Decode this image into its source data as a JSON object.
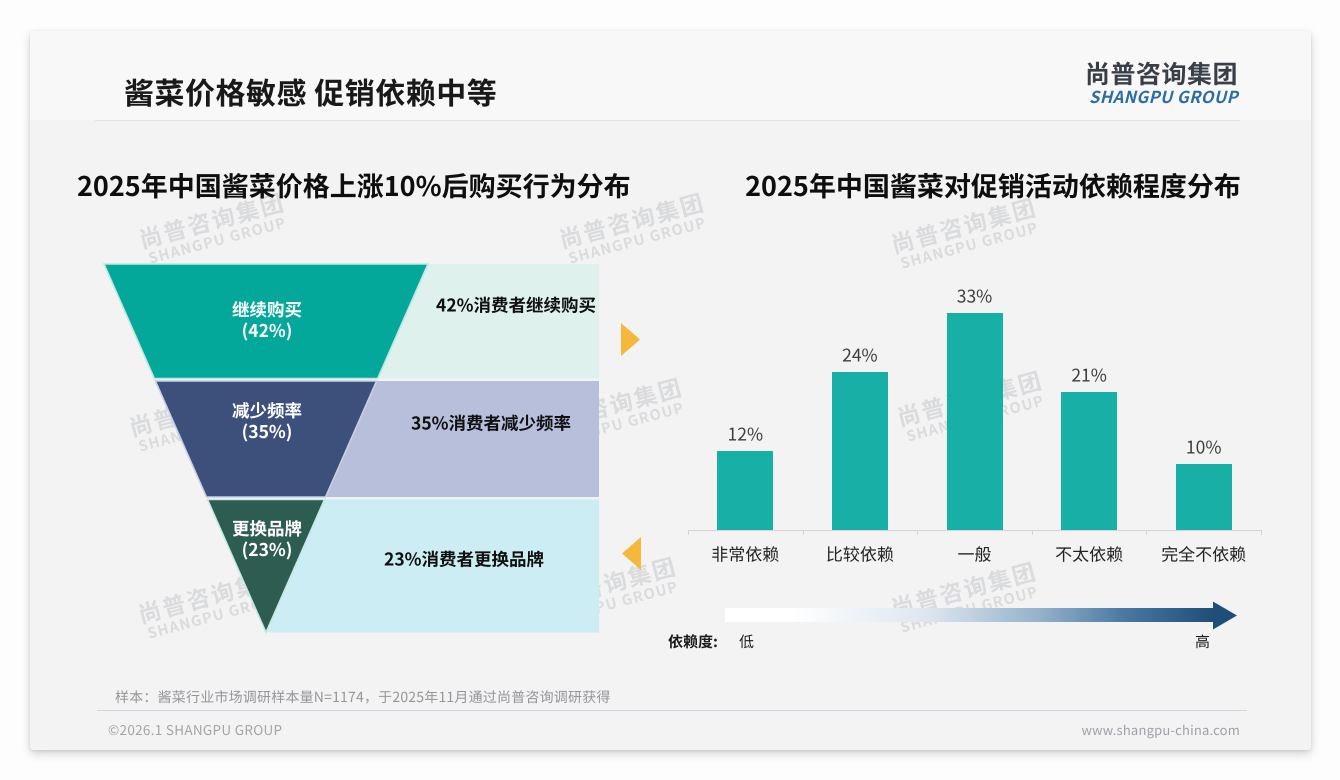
{
  "header": {
    "title": "酱菜价格敏感 促销依赖中等",
    "logo": {
      "zh": "尚普咨询集团",
      "en": "SHANGPU GROUP"
    }
  },
  "watermark": {
    "zh": "尚普咨询集团",
    "en": "SHANGPU GROUP"
  },
  "chart_data": [
    {
      "type": "funnel",
      "title": "2025年中国酱菜价格上涨10%后购买行为分布",
      "categories": [
        "继续购买",
        "减少频率",
        "更换品牌"
      ],
      "values": [
        42,
        35,
        23
      ],
      "stages": [
        {
          "label": "继续购买",
          "pct": "(42%)",
          "value": 42,
          "note": "42%消费者继续购买",
          "color": "#03A89B",
          "note_bg": "#DEF1EC",
          "edge": "#BEE8E2"
        },
        {
          "label": "减少频率",
          "pct": "(35%)",
          "value": 35,
          "note": "35%消费者减少频率",
          "color": "#3D4F7B",
          "note_bg": "#B7BFDB",
          "edge": "#C9D0E4"
        },
        {
          "label": "更换品牌",
          "pct": "(23%)",
          "value": 23,
          "note": "23%消费者更换品牌",
          "color": "#2D5C50",
          "note_bg": "#CBEDF3",
          "edge": "#C5E9E3"
        }
      ],
      "arrow_color": "#F5B83D"
    },
    {
      "type": "bar",
      "title": "2025年中国酱菜对促销活动依赖程度分布",
      "categories": [
        "非常依赖",
        "比较依赖",
        "一般",
        "不太依赖",
        "完全不依赖"
      ],
      "values": [
        12,
        24,
        33,
        21,
        10
      ],
      "value_labels": [
        "12%",
        "24%",
        "33%",
        "21%",
        "10%"
      ],
      "bar_color": "#18AFA7",
      "ylim": [
        0,
        36
      ],
      "legend": {
        "label": "依赖度:",
        "low": "低",
        "high": "高",
        "gradient_from": "#FFFFFF",
        "gradient_to": "#1F4E79"
      }
    }
  ],
  "footnote": "样本：酱菜行业市场调研样本量N=1174，于2025年11月通过尚普咨询调研获得",
  "footer": {
    "copyright": "©2026.1 SHANGPU GROUP",
    "website": "www.shangpu-china.com"
  },
  "colors": {
    "teal": "#03A89B",
    "dark_blue": "#3D4F7B",
    "dark_green": "#2D5C50",
    "accent_yellow": "#F5B83D",
    "logo_blue": "#2E6DA4",
    "card_bg": "#F3F3F4"
  }
}
